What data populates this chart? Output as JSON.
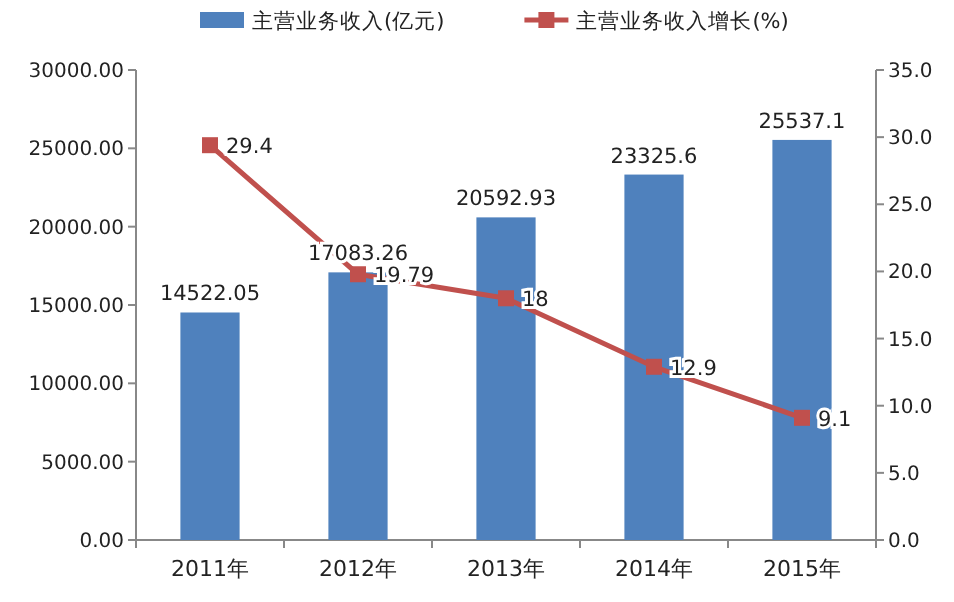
{
  "chart_data": {
    "type": "bar",
    "categories": [
      "2011年",
      "2012年",
      "2013年",
      "2014年",
      "2015年"
    ],
    "series": [
      {
        "name": "主营业务收入(亿元)",
        "color": "#4f81bd",
        "values": [
          14522.05,
          17083.26,
          20592.93,
          23325.6,
          25537.1
        ]
      },
      {
        "name": "主营业务收入增长(%)",
        "type": "line",
        "axis": "y2",
        "color": "#c0504d",
        "marker": "square",
        "values": [
          29.4,
          19.79,
          18,
          12.9,
          9.1
        ]
      }
    ],
    "ylim": [
      0,
      30000
    ],
    "yticks": [
      {
        "value": 0,
        "label": "0.00"
      },
      {
        "value": 5000,
        "label": "5000.00"
      },
      {
        "value": 10000,
        "label": "10000.00"
      },
      {
        "value": 15000,
        "label": "15000.00"
      },
      {
        "value": 20000,
        "label": "20000.00"
      },
      {
        "value": 25000,
        "label": "25000.00"
      },
      {
        "value": 30000,
        "label": "30000.00"
      }
    ],
    "y2lim": [
      0,
      35
    ],
    "y2ticks": [
      {
        "value": 0,
        "label": "0.0"
      },
      {
        "value": 5,
        "label": "5.0"
      },
      {
        "value": 10,
        "label": "10.0"
      },
      {
        "value": 15,
        "label": "15.0"
      },
      {
        "value": 20,
        "label": "20.0"
      },
      {
        "value": 25,
        "label": "25.0"
      },
      {
        "value": 30,
        "label": "30.0"
      },
      {
        "value": 35,
        "label": "35.0"
      }
    ],
    "data_labels": true,
    "legend": "top",
    "grid": false
  }
}
